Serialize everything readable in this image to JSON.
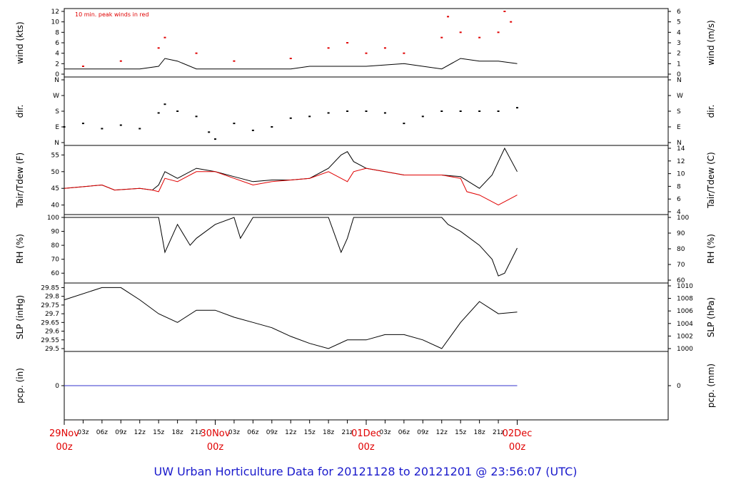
{
  "footer_title": "UW Urban Horticulture Data for 20121128  to  20121201 @ 23:56:07  (UTC)",
  "colors": {
    "axis": "#000000",
    "accent_red": "#e00000",
    "footer_blue": "#1a1acc",
    "precip_blue": "#3333cc"
  },
  "x_axis": {
    "hours_range": [
      0,
      96
    ],
    "day_labels": [
      {
        "hour": 0,
        "date": "29Nov",
        "time": "00z"
      },
      {
        "hour": 24,
        "date": "30Nov",
        "time": "00z"
      },
      {
        "hour": 48,
        "date": "01Dec",
        "time": "00z"
      },
      {
        "hour": 72,
        "date": "02Dec",
        "time": "00z"
      }
    ],
    "hour_ticks": [
      {
        "hour": 3,
        "label": "03z"
      },
      {
        "hour": 6,
        "label": "06z"
      },
      {
        "hour": 9,
        "label": "09z"
      },
      {
        "hour": 12,
        "label": "12z"
      },
      {
        "hour": 15,
        "label": "15z"
      },
      {
        "hour": 18,
        "label": "18z"
      },
      {
        "hour": 21,
        "label": "21z"
      },
      {
        "hour": 27,
        "label": "03z"
      },
      {
        "hour": 30,
        "label": "06z"
      },
      {
        "hour": 33,
        "label": "09z"
      },
      {
        "hour": 36,
        "label": "12z"
      },
      {
        "hour": 39,
        "label": "15z"
      },
      {
        "hour": 42,
        "label": "18z"
      },
      {
        "hour": 45,
        "label": "21z"
      },
      {
        "hour": 51,
        "label": "03z"
      },
      {
        "hour": 54,
        "label": "06z"
      },
      {
        "hour": 57,
        "label": "09z"
      },
      {
        "hour": 60,
        "label": "12z"
      },
      {
        "hour": 63,
        "label": "15z"
      },
      {
        "hour": 66,
        "label": "18z"
      },
      {
        "hour": 69,
        "label": "21z"
      }
    ]
  },
  "chart_data": [
    {
      "type": "line",
      "panel": "wind",
      "ylabel": "wind (kts)",
      "ylabel_right": "wind (m/s)",
      "annotation": "10 min. peak winds in red",
      "ylim": [
        0,
        12
      ],
      "ylim_right": [
        0,
        6.17
      ],
      "y_ticks": [
        0,
        2,
        4,
        6,
        8,
        10,
        12
      ],
      "y_ticks_right": [
        0,
        1,
        2,
        3,
        4,
        5,
        6
      ],
      "series": [
        {
          "color": "#000000",
          "x": [
            0,
            6,
            12,
            15,
            16,
            18,
            21,
            24,
            30,
            36,
            39,
            42,
            45,
            48,
            54,
            57,
            60,
            63,
            66,
            69,
            72
          ],
          "y": [
            1,
            1,
            1,
            1.5,
            3,
            2.5,
            1,
            1,
            1,
            1,
            1.5,
            1.5,
            1.5,
            1.5,
            2,
            1.5,
            1,
            3,
            2.5,
            2.5,
            2
          ]
        },
        {
          "color": "#e00000",
          "style": "points",
          "x": [
            3,
            9,
            15,
            16,
            21,
            27,
            36,
            42,
            45,
            48,
            51,
            54,
            60,
            61,
            63,
            66,
            69,
            70,
            71
          ],
          "y": [
            1.5,
            2.5,
            5,
            7,
            4,
            2.5,
            3,
            5,
            6,
            4,
            5,
            4,
            7,
            11,
            8,
            7,
            8,
            12,
            10
          ]
        }
      ]
    },
    {
      "type": "scatter",
      "panel": "dir",
      "ylabel": "dir.",
      "ylabel_right": "dir.",
      "y_ticks": [
        "N",
        "E",
        "S",
        "W",
        "N"
      ],
      "series": [
        {
          "color": "#000000",
          "x": [
            0,
            3,
            6,
            9,
            12,
            15,
            16,
            18,
            21,
            23,
            24,
            27,
            30,
            33,
            36,
            39,
            42,
            45,
            48,
            51,
            54,
            57,
            60,
            63,
            66,
            69,
            72
          ],
          "y": [
            90,
            110,
            80,
            100,
            80,
            170,
            220,
            180,
            150,
            60,
            20,
            110,
            70,
            90,
            140,
            150,
            170,
            180,
            180,
            170,
            110,
            150,
            180,
            180,
            180,
            180,
            200
          ]
        }
      ]
    },
    {
      "type": "line",
      "panel": "temperature",
      "ylabel": "Tair/Tdew (F)",
      "ylabel_right": "Tair/Tdew (C)",
      "ylim": [
        38,
        57
      ],
      "y_ticks": [
        40,
        45,
        50,
        55
      ],
      "y_ticks_right": [
        4,
        6,
        8,
        10,
        12,
        14
      ],
      "series": [
        {
          "color": "#000000",
          "x": [
            0,
            6,
            8,
            12,
            14,
            15,
            16,
            18,
            21,
            24,
            27,
            30,
            33,
            36,
            39,
            42,
            44,
            45,
            46,
            48,
            51,
            54,
            57,
            60,
            63,
            66,
            68,
            69,
            70,
            72
          ],
          "y": [
            45,
            46,
            44.5,
            45,
            44.5,
            46,
            50,
            48,
            51,
            50,
            48.5,
            47,
            47.5,
            47.5,
            48,
            51,
            55,
            56,
            53,
            51,
            50,
            49,
            49,
            49,
            48.5,
            45,
            49,
            53,
            57,
            50
          ]
        },
        {
          "color": "#e00000",
          "x": [
            0,
            6,
            8,
            12,
            14,
            15,
            16,
            18,
            21,
            24,
            27,
            30,
            33,
            36,
            39,
            42,
            45,
            46,
            48,
            51,
            54,
            57,
            60,
            63,
            64,
            66,
            69,
            72
          ],
          "y": [
            45,
            46,
            44.5,
            45,
            44.5,
            44,
            48,
            47,
            50,
            50,
            48,
            46,
            47,
            47.5,
            48,
            50,
            47,
            50,
            51,
            50,
            49,
            49,
            49,
            48,
            44,
            43,
            40,
            43
          ]
        }
      ]
    },
    {
      "type": "line",
      "panel": "rh",
      "ylabel": "RH (%)",
      "ylabel_right": "RH (%)",
      "ylim": [
        55,
        100
      ],
      "y_ticks": [
        60,
        70,
        80,
        90,
        100
      ],
      "series": [
        {
          "color": "#000000",
          "x": [
            0,
            14,
            15,
            16,
            18,
            20,
            21,
            24,
            27,
            28,
            30,
            33,
            36,
            39,
            42,
            44,
            45,
            46,
            48,
            54,
            57,
            60,
            61,
            63,
            66,
            68,
            69,
            70,
            72
          ],
          "y": [
            100,
            100,
            100,
            75,
            95,
            80,
            85,
            95,
            100,
            85,
            100,
            100,
            100,
            100,
            100,
            75,
            85,
            100,
            100,
            100,
            100,
            100,
            95,
            90,
            80,
            70,
            58,
            60,
            78
          ]
        }
      ]
    },
    {
      "type": "line",
      "panel": "slp",
      "ylabel": "SLP (inHg)",
      "ylabel_right": "SLP (hPa)",
      "ylim": [
        29.5,
        29.86
      ],
      "y_ticks": [
        29.5,
        29.55,
        29.6,
        29.65,
        29.7,
        29.75,
        29.8,
        29.85
      ],
      "y_ticks_right": [
        1000,
        1002,
        1004,
        1006,
        1008,
        1010
      ],
      "series": [
        {
          "color": "#000000",
          "x": [
            0,
            6,
            9,
            12,
            15,
            18,
            21,
            24,
            27,
            30,
            33,
            36,
            39,
            42,
            45,
            48,
            51,
            54,
            57,
            60,
            63,
            66,
            69,
            72
          ],
          "y": [
            29.78,
            29.85,
            29.85,
            29.78,
            29.7,
            29.65,
            29.72,
            29.72,
            29.68,
            29.65,
            29.62,
            29.57,
            29.53,
            29.5,
            29.55,
            29.55,
            29.58,
            29.58,
            29.55,
            29.5,
            29.65,
            29.77,
            29.7,
            29.71
          ]
        }
      ]
    },
    {
      "type": "line",
      "panel": "pcp",
      "ylabel": "pcp. (in)",
      "ylabel_right": "pcp. (mm)",
      "y_ticks": [
        0
      ],
      "y_ticks_right": [
        0
      ],
      "series": [
        {
          "color": "#3333cc",
          "x": [
            0,
            72
          ],
          "y": [
            0,
            0
          ]
        }
      ]
    }
  ]
}
